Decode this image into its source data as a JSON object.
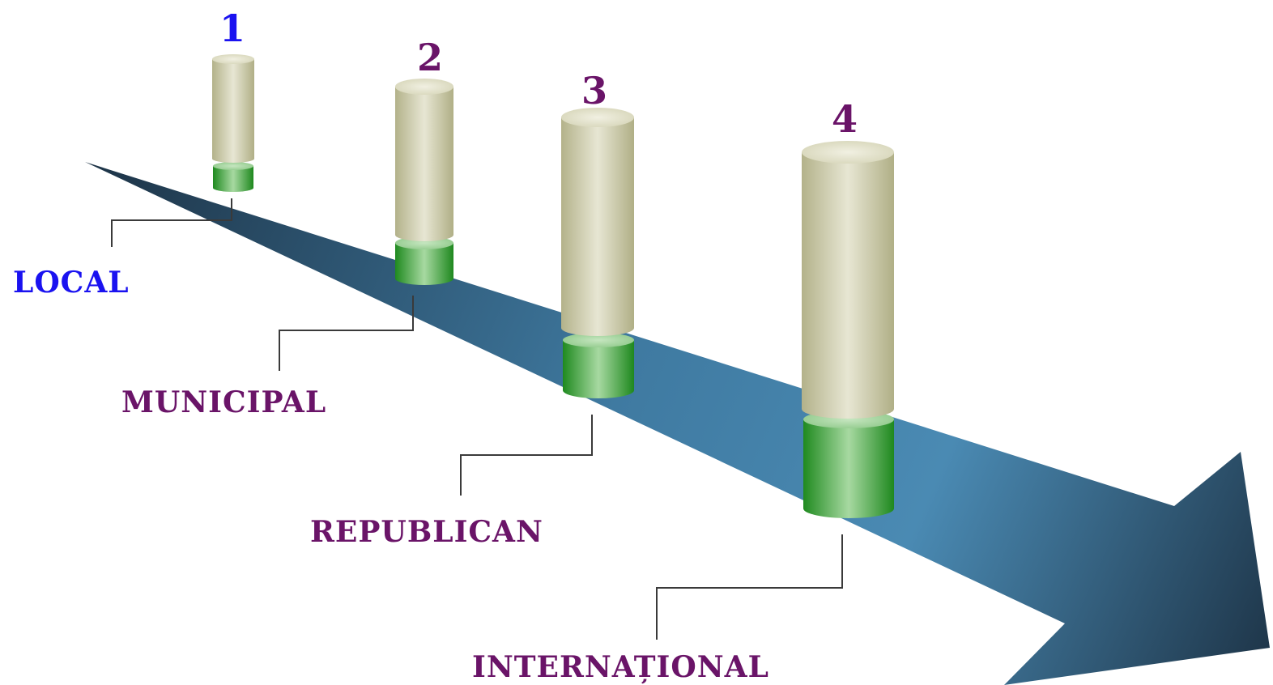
{
  "levels": [
    {
      "number": "1",
      "name": "LOCAL"
    },
    {
      "number": "2",
      "name": "MUNICIPAL"
    },
    {
      "number": "3",
      "name": "REPUBLICAN"
    },
    {
      "number": "4",
      "name": "INTERNAȚIONAL"
    }
  ],
  "colors": {
    "level_1_text": "#1a12f0",
    "other_levels_text": "#6a1468",
    "arrow_light": "#4a8ab3",
    "arrow_dark": "#1d3346",
    "cylinder_body": "#d8d7bb",
    "cylinder_base": "#3aa03a"
  }
}
